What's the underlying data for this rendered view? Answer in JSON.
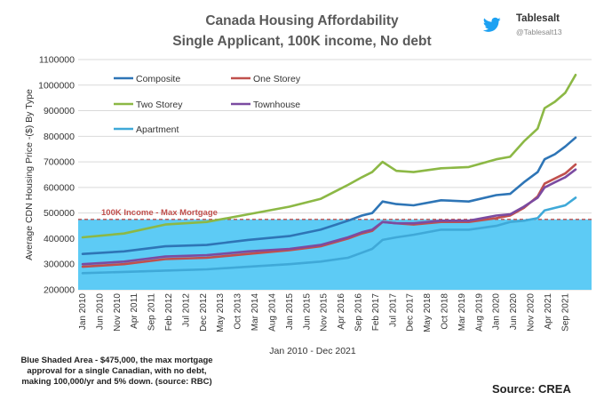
{
  "header": {
    "title_line1": "Canada Housing Affordability",
    "title_line2": "Single Applicant, 100K income, No debt"
  },
  "brand": {
    "name": "Tablesalt",
    "handle": "@Tablesalt13",
    "icon": "twitter-bird-icon",
    "color": "#1DA1F2"
  },
  "footer": {
    "note": "Blue Shaded Area - $475,000, the max mortgage approval for a single Canadian, with no debt, making 100,000/yr and 5% down. (source: RBC)",
    "source": "Source: CREA"
  },
  "chart_data": {
    "type": "line",
    "ylabel": "Average CDN Housing Price -($) By Type",
    "xlabel": "Jan 2010 - Dec 2021",
    "ylim": [
      200000,
      1100000
    ],
    "yticks": [
      "200000",
      "300000",
      "400000",
      "500000",
      "600000",
      "700000",
      "800000",
      "900000",
      "1000000",
      "1100000"
    ],
    "xticks": [
      "Jan 2010",
      "Jun 2010",
      "Nov 2010",
      "Apr 2011",
      "Sep 2011",
      "Feb 2012",
      "Jul 2012",
      "Dec 2012",
      "May 2013",
      "Oct 2013",
      "Mar 2014",
      "Aug 2014",
      "Jan 2015",
      "Jun 2015",
      "Nov 2015",
      "Apr 2016",
      "Sep 2016",
      "Feb 2017",
      "Jul 2017",
      "Dec 2017",
      "May 2018",
      "Oct 2018",
      "Mar 2019",
      "Aug 2019",
      "Jan 2020",
      "Jun 2020",
      "Nov 2020",
      "Apr 2021",
      "Sep 2021"
    ],
    "grid": true,
    "legend_position": "top-left",
    "shaded_area": {
      "value": 475000,
      "label": "100K Income - Max Mortgage",
      "color": "#5DCBF5",
      "line_color": "#C0504D"
    },
    "series": [
      {
        "name": "Composite",
        "color": "#2E75B6",
        "points": [
          [
            "2010-01",
            340000
          ],
          [
            "2011-01",
            350000
          ],
          [
            "2012-01",
            370000
          ],
          [
            "2013-01",
            375000
          ],
          [
            "2014-01",
            395000
          ],
          [
            "2015-01",
            410000
          ],
          [
            "2015-10",
            435000
          ],
          [
            "2016-06",
            470000
          ],
          [
            "2016-10",
            490000
          ],
          [
            "2017-01",
            500000
          ],
          [
            "2017-04",
            545000
          ],
          [
            "2017-08",
            535000
          ],
          [
            "2018-01",
            530000
          ],
          [
            "2018-09",
            550000
          ],
          [
            "2019-05",
            545000
          ],
          [
            "2020-01",
            570000
          ],
          [
            "2020-05",
            575000
          ],
          [
            "2020-09",
            620000
          ],
          [
            "2021-01",
            660000
          ],
          [
            "2021-03",
            710000
          ],
          [
            "2021-06",
            730000
          ],
          [
            "2021-09",
            760000
          ],
          [
            "2021-12",
            795000
          ]
        ]
      },
      {
        "name": "One Storey",
        "color": "#C0504D",
        "points": [
          [
            "2010-01",
            290000
          ],
          [
            "2011-01",
            300000
          ],
          [
            "2012-01",
            320000
          ],
          [
            "2013-01",
            325000
          ],
          [
            "2014-01",
            340000
          ],
          [
            "2015-01",
            355000
          ],
          [
            "2015-10",
            370000
          ],
          [
            "2016-06",
            400000
          ],
          [
            "2016-10",
            420000
          ],
          [
            "2017-01",
            430000
          ],
          [
            "2017-04",
            465000
          ],
          [
            "2017-08",
            460000
          ],
          [
            "2018-01",
            455000
          ],
          [
            "2018-09",
            465000
          ],
          [
            "2019-05",
            465000
          ],
          [
            "2020-01",
            480000
          ],
          [
            "2020-05",
            490000
          ],
          [
            "2020-09",
            520000
          ],
          [
            "2021-01",
            565000
          ],
          [
            "2021-03",
            615000
          ],
          [
            "2021-06",
            635000
          ],
          [
            "2021-09",
            655000
          ],
          [
            "2021-12",
            690000
          ]
        ]
      },
      {
        "name": "Two Storey",
        "color": "#8CB845",
        "points": [
          [
            "2010-01",
            405000
          ],
          [
            "2011-01",
            420000
          ],
          [
            "2012-01",
            455000
          ],
          [
            "2013-01",
            465000
          ],
          [
            "2014-01",
            495000
          ],
          [
            "2015-01",
            525000
          ],
          [
            "2015-10",
            555000
          ],
          [
            "2016-06",
            610000
          ],
          [
            "2016-10",
            640000
          ],
          [
            "2017-01",
            660000
          ],
          [
            "2017-04",
            700000
          ],
          [
            "2017-08",
            665000
          ],
          [
            "2018-01",
            660000
          ],
          [
            "2018-09",
            675000
          ],
          [
            "2019-05",
            680000
          ],
          [
            "2020-01",
            710000
          ],
          [
            "2020-05",
            720000
          ],
          [
            "2020-09",
            780000
          ],
          [
            "2021-01",
            830000
          ],
          [
            "2021-03",
            910000
          ],
          [
            "2021-06",
            935000
          ],
          [
            "2021-09",
            970000
          ],
          [
            "2021-12",
            1040000
          ]
        ]
      },
      {
        "name": "Townhouse",
        "color": "#7B4BA1",
        "points": [
          [
            "2010-01",
            300000
          ],
          [
            "2011-01",
            310000
          ],
          [
            "2012-01",
            330000
          ],
          [
            "2013-01",
            335000
          ],
          [
            "2014-01",
            350000
          ],
          [
            "2015-01",
            360000
          ],
          [
            "2015-10",
            375000
          ],
          [
            "2016-06",
            405000
          ],
          [
            "2016-10",
            425000
          ],
          [
            "2017-01",
            435000
          ],
          [
            "2017-04",
            465000
          ],
          [
            "2017-08",
            460000
          ],
          [
            "2018-01",
            460000
          ],
          [
            "2018-09",
            470000
          ],
          [
            "2019-05",
            470000
          ],
          [
            "2020-01",
            490000
          ],
          [
            "2020-05",
            495000
          ],
          [
            "2020-09",
            525000
          ],
          [
            "2021-01",
            560000
          ],
          [
            "2021-03",
            600000
          ],
          [
            "2021-06",
            620000
          ],
          [
            "2021-09",
            640000
          ],
          [
            "2021-12",
            670000
          ]
        ]
      },
      {
        "name": "Apartment",
        "color": "#3FA9D8",
        "points": [
          [
            "2010-01",
            265000
          ],
          [
            "2011-01",
            270000
          ],
          [
            "2012-01",
            275000
          ],
          [
            "2013-01",
            280000
          ],
          [
            "2014-01",
            290000
          ],
          [
            "2015-01",
            300000
          ],
          [
            "2015-10",
            310000
          ],
          [
            "2016-06",
            325000
          ],
          [
            "2016-10",
            345000
          ],
          [
            "2017-01",
            360000
          ],
          [
            "2017-04",
            395000
          ],
          [
            "2017-08",
            405000
          ],
          [
            "2018-01",
            415000
          ],
          [
            "2018-09",
            435000
          ],
          [
            "2019-05",
            435000
          ],
          [
            "2020-01",
            450000
          ],
          [
            "2020-05",
            465000
          ],
          [
            "2020-09",
            470000
          ],
          [
            "2021-01",
            480000
          ],
          [
            "2021-03",
            510000
          ],
          [
            "2021-06",
            520000
          ],
          [
            "2021-09",
            530000
          ],
          [
            "2021-12",
            560000
          ]
        ]
      }
    ]
  }
}
